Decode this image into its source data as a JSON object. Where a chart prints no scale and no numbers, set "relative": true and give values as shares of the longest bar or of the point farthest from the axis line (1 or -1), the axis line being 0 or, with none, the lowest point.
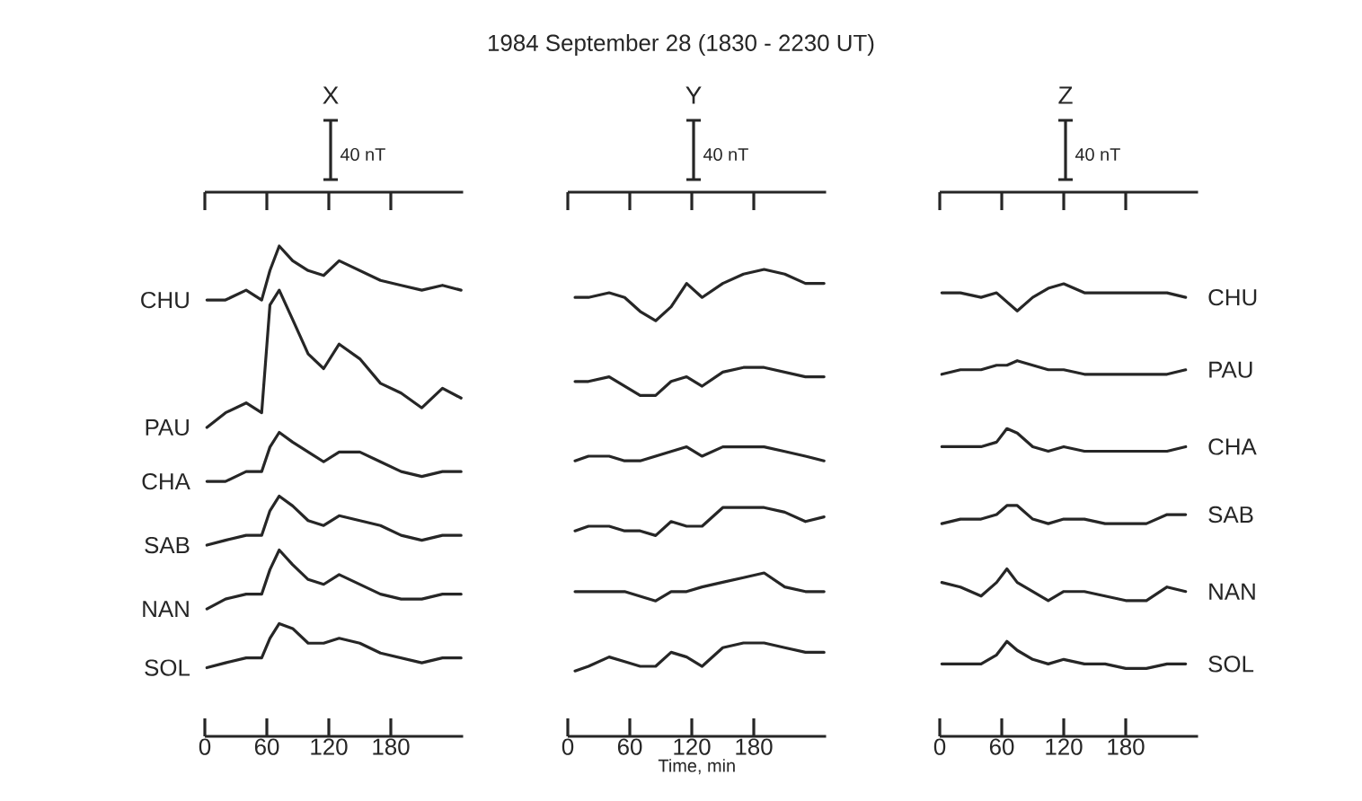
{
  "chart_data": [
    {
      "type": "line",
      "title": "X",
      "relative": true,
      "x": [
        2,
        20,
        40,
        55,
        63,
        72,
        85,
        100,
        115,
        130,
        150,
        170,
        190,
        210,
        230,
        248
      ],
      "xlim": [
        0,
        250
      ],
      "xticks": [
        0,
        60,
        120,
        180
      ],
      "annotations": [
        "40 nT"
      ],
      "series": [
        {
          "name": "CHU",
          "color": "#262626",
          "values": [
            0.89,
            0.89,
            0.91,
            0.89,
            0.95,
            1.0,
            0.97,
            0.95,
            0.94,
            0.97,
            0.95,
            0.93,
            0.92,
            0.91,
            0.92,
            0.91
          ]
        },
        {
          "name": "PAU",
          "color": "#262626",
          "values": [
            0.63,
            0.66,
            0.68,
            0.66,
            0.88,
            0.91,
            0.85,
            0.78,
            0.75,
            0.8,
            0.77,
            0.72,
            0.7,
            0.67,
            0.71,
            0.69
          ]
        },
        {
          "name": "CHA",
          "color": "#262626",
          "values": [
            0.52,
            0.52,
            0.54,
            0.54,
            0.59,
            0.62,
            0.6,
            0.58,
            0.56,
            0.58,
            0.58,
            0.56,
            0.54,
            0.53,
            0.54,
            0.54
          ]
        },
        {
          "name": "SAB",
          "color": "#262626",
          "values": [
            0.39,
            0.4,
            0.41,
            0.41,
            0.46,
            0.49,
            0.47,
            0.44,
            0.43,
            0.45,
            0.44,
            0.43,
            0.41,
            0.4,
            0.41,
            0.41
          ]
        },
        {
          "name": "NAN",
          "color": "#262626",
          "values": [
            0.26,
            0.28,
            0.29,
            0.29,
            0.34,
            0.38,
            0.35,
            0.32,
            0.31,
            0.33,
            0.31,
            0.29,
            0.28,
            0.28,
            0.29,
            0.29
          ]
        },
        {
          "name": "SOL",
          "color": "#262626",
          "values": [
            0.14,
            0.15,
            0.16,
            0.16,
            0.2,
            0.23,
            0.22,
            0.19,
            0.19,
            0.2,
            0.19,
            0.17,
            0.16,
            0.15,
            0.16,
            0.16
          ]
        }
      ]
    },
    {
      "type": "line",
      "title": "Y",
      "xlabel": "Time, min",
      "relative": true,
      "x": [
        7,
        20,
        40,
        55,
        70,
        85,
        100,
        115,
        130,
        150,
        170,
        190,
        210,
        230,
        248
      ],
      "xlim": [
        0,
        250
      ],
      "xticks": [
        0,
        60,
        120,
        180
      ],
      "annotations": [
        "1984 September 28 (1830 - 2230 UT)",
        "40 nT"
      ],
      "series": [
        {
          "color": "#262626",
          "values": [
            0.94,
            0.94,
            0.95,
            0.94,
            0.91,
            0.89,
            0.92,
            0.97,
            0.94,
            0.97,
            0.99,
            1.0,
            0.99,
            0.97,
            0.97
          ]
        },
        {
          "color": "#262626",
          "values": [
            0.76,
            0.76,
            0.77,
            0.75,
            0.73,
            0.73,
            0.76,
            0.77,
            0.75,
            0.78,
            0.79,
            0.79,
            0.78,
            0.77,
            0.77
          ]
        },
        {
          "color": "#262626",
          "values": [
            0.59,
            0.6,
            0.6,
            0.59,
            0.59,
            0.6,
            0.61,
            0.62,
            0.6,
            0.62,
            0.62,
            0.62,
            0.61,
            0.6,
            0.59
          ]
        },
        {
          "color": "#262626",
          "values": [
            0.44,
            0.45,
            0.45,
            0.44,
            0.44,
            0.43,
            0.46,
            0.45,
            0.45,
            0.49,
            0.49,
            0.49,
            0.48,
            0.46,
            0.47
          ]
        },
        {
          "color": "#262626",
          "values": [
            0.31,
            0.31,
            0.31,
            0.31,
            0.3,
            0.29,
            0.31,
            0.31,
            0.32,
            0.33,
            0.34,
            0.35,
            0.32,
            0.31,
            0.31
          ]
        },
        {
          "color": "#262626",
          "values": [
            0.14,
            0.15,
            0.17,
            0.16,
            0.15,
            0.15,
            0.18,
            0.17,
            0.15,
            0.19,
            0.2,
            0.2,
            0.19,
            0.18,
            0.18
          ]
        }
      ]
    },
    {
      "type": "line",
      "title": "Z",
      "relative": true,
      "x": [
        2,
        20,
        40,
        55,
        65,
        75,
        90,
        105,
        120,
        140,
        160,
        180,
        200,
        220,
        238
      ],
      "xlim": [
        0,
        250
      ],
      "xticks": [
        0,
        60,
        120,
        180
      ],
      "annotations": [
        "40 nT"
      ],
      "series": [
        {
          "name": "CHU",
          "color": "#262626",
          "values": [
            0.98,
            0.98,
            0.97,
            0.98,
            0.96,
            0.94,
            0.97,
            0.99,
            1.0,
            0.98,
            0.98,
            0.98,
            0.98,
            0.98,
            0.97
          ]
        },
        {
          "name": "PAU",
          "color": "#262626",
          "values": [
            0.8,
            0.81,
            0.81,
            0.82,
            0.82,
            0.83,
            0.82,
            0.81,
            0.81,
            0.8,
            0.8,
            0.8,
            0.8,
            0.8,
            0.81
          ]
        },
        {
          "name": "CHA",
          "color": "#262626",
          "values": [
            0.64,
            0.64,
            0.64,
            0.65,
            0.68,
            0.67,
            0.64,
            0.63,
            0.64,
            0.63,
            0.63,
            0.63,
            0.63,
            0.63,
            0.64
          ]
        },
        {
          "name": "SAB",
          "color": "#262626",
          "values": [
            0.47,
            0.48,
            0.48,
            0.49,
            0.51,
            0.51,
            0.48,
            0.47,
            0.48,
            0.48,
            0.47,
            0.47,
            0.47,
            0.49,
            0.49
          ]
        },
        {
          "name": "NAN",
          "color": "#262626",
          "values": [
            0.34,
            0.33,
            0.31,
            0.34,
            0.37,
            0.34,
            0.32,
            0.3,
            0.32,
            0.32,
            0.31,
            0.3,
            0.3,
            0.33,
            0.32
          ]
        },
        {
          "name": "SOL",
          "color": "#262626",
          "values": [
            0.16,
            0.16,
            0.16,
            0.18,
            0.21,
            0.19,
            0.17,
            0.16,
            0.17,
            0.16,
            0.16,
            0.15,
            0.15,
            0.16,
            0.16
          ]
        }
      ]
    }
  ]
}
